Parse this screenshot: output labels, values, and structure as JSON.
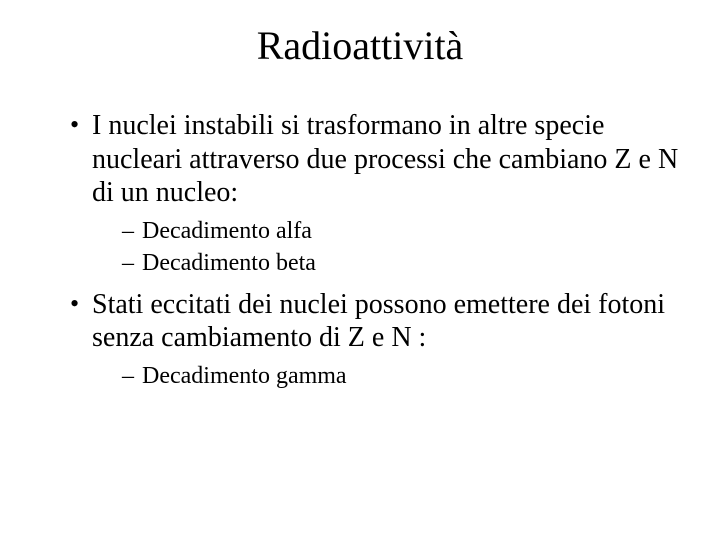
{
  "colors": {
    "background": "#ffffff",
    "text": "#000000"
  },
  "typography": {
    "family": "Times New Roman",
    "title_fontsize": 40,
    "body_fontsize": 28,
    "sub_fontsize": 24
  },
  "title": "Radioattività",
  "bullets": [
    {
      "text": "I nuclei instabili si trasformano in altre specie nucleari attraverso due processi che cambiano Z e N di un nucleo:",
      "sub": [
        "Decadimento alfa",
        "Decadimento beta"
      ]
    },
    {
      "text": "Stati eccitati dei nuclei possono emettere dei fotoni senza cambiamento di Z e N :",
      "sub": [
        "Decadimento gamma"
      ]
    }
  ]
}
